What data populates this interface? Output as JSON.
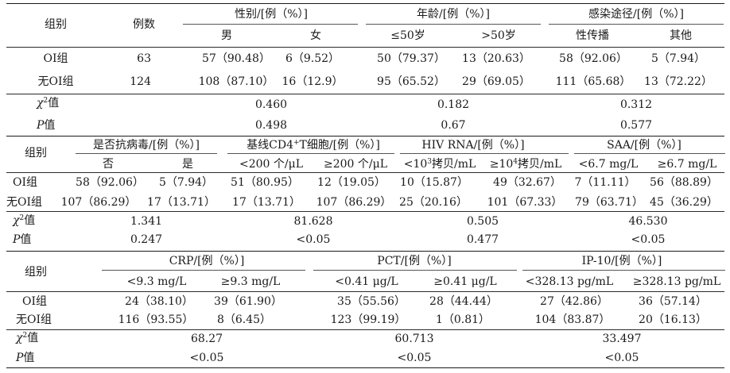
{
  "t1": {
    "group": "组别",
    "count": "例数",
    "sex": "性别/[例（%）]",
    "male": "男",
    "female": "女",
    "age": "年龄/[例（%）]",
    "age_le50": "≤50岁",
    "age_gt50": ">50岁",
    "route": "感染途径/[例（%）]",
    "sexual": "性传播",
    "other": "其他",
    "rows": [
      {
        "label": "OI组",
        "n": "63",
        "male": "57（90.48）",
        "female": "6（9.52）",
        "le50": "50（79.37）",
        "gt50": "13（20.63）",
        "sexual": "58（92.06）",
        "other": "5（7.94）"
      },
      {
        "label": "无OI组",
        "n": "124",
        "male": "108（87.10）",
        "female": "16（12.9）",
        "le50": "95（65.52）",
        "gt50": "29（69.05）",
        "sexual": "111（65.68）",
        "other": "13（72.22）"
      }
    ],
    "chi_label": "值",
    "p_label": "值",
    "chi": [
      "0.460",
      "0.182",
      "0.312"
    ],
    "p": [
      "0.498",
      "0.67",
      "0.577"
    ]
  },
  "t2": {
    "group": "组别",
    "antiviral": "是否抗病毒/[例（%）]",
    "no": "否",
    "yes": "是",
    "cd4_pre": "基线CD4",
    "cd4_sup": "+",
    "cd4_post": "T细胞/[例（%）]",
    "cd4_lt": "<200 个/μL",
    "cd4_ge": "≥200 个/μL",
    "hiv": "HIV RNA/[例（%）]",
    "hiv_lt_pre": "<10",
    "hiv_lt_sup": "3",
    "hiv_lt_post": "拷贝/mL",
    "hiv_ge_pre": "≥10",
    "hiv_ge_sup": "4",
    "hiv_ge_post": "拷贝/mL",
    "saa": "SAA/[例（%）]",
    "saa_lt": "<6.7 mg/L",
    "saa_ge": "≥6.7 mg/L",
    "rows": [
      {
        "label": "OI组",
        "no": "58（92.06）",
        "yes": "5（7.94）",
        "cd4_lt": "51（80.95）",
        "cd4_ge": "12（19.05）",
        "hiv_lt": "10（15.87）",
        "hiv_ge": "49（32.67）",
        "saa_lt": "7（11.11）",
        "saa_ge": "56（88.89）"
      },
      {
        "label": "无OI组",
        "no": "107（86.29）",
        "yes": "17（13.71）",
        "cd4_lt": "17（13.71）",
        "cd4_ge": "107（86.29）",
        "hiv_lt": "25（20.16）",
        "hiv_ge": "101（67.33）",
        "saa_lt": "79（63.71）",
        "saa_ge": "45（36.29）"
      }
    ],
    "chi_label": "值",
    "p_label": "值",
    "chi": [
      "1.341",
      "81.628",
      "0.505",
      "46.530"
    ],
    "p": [
      "0.247",
      "<0.05",
      "0.477",
      "<0.05"
    ]
  },
  "t3": {
    "group": "组别",
    "crp": "CRP/[例（%）]",
    "crp_lt": "<9.3 mg/L",
    "crp_ge": "≥9.3 mg/L",
    "pct": "PCT/[例（%）]",
    "pct_lt": "<0.41 μg/L",
    "pct_ge": "≥0.41 μg/L",
    "ip10": "IP-10/[例（%）]",
    "ip10_lt": "<328.13 pg/mL",
    "ip10_ge": "≥328.13 pg/mL",
    "rows": [
      {
        "label": "OI组",
        "crp_lt": "24（38.10）",
        "crp_ge": "39（61.90）",
        "pct_lt": "35（55.56）",
        "pct_ge": "28（44.44）",
        "ip10_lt": "27（42.86）",
        "ip10_ge": "36（57.14）"
      },
      {
        "label": "无OI组",
        "crp_lt": "116（93.55）",
        "crp_ge": "8（6.45）",
        "pct_lt": "123（99.19）",
        "pct_ge": "1（0.81）",
        "ip10_lt": "104（83.87）",
        "ip10_ge": "20（16.13）"
      }
    ],
    "chi_label": "值",
    "p_label": "值",
    "chi": [
      "68.27",
      "60.713",
      "33.497"
    ],
    "p": [
      "<0.05",
      "<0.05",
      "<0.05"
    ]
  }
}
